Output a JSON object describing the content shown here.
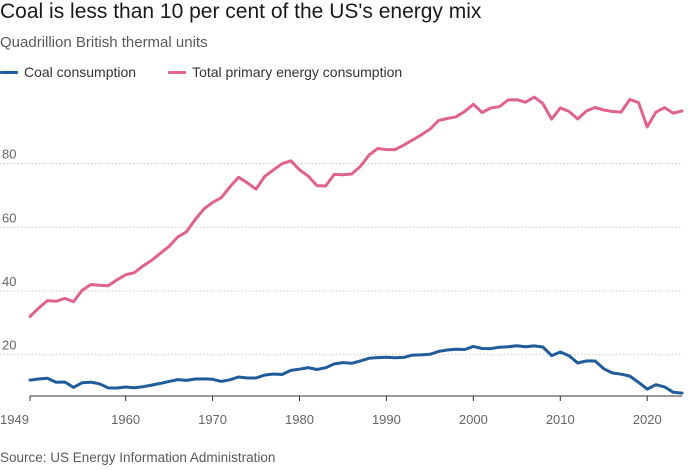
{
  "header": {
    "title": "Coal is less than 10 per cent of the US's energy mix",
    "subtitle": "Quadrillion British thermal units"
  },
  "footer": {
    "source": "Source: US Energy Information Administration"
  },
  "colors": {
    "coal": "#1f5c99",
    "total": "#e0628f",
    "grid": "#c9c9c9",
    "axis": "#333333",
    "tick_text": "#666666"
  },
  "chart_data": {
    "type": "line",
    "title": "Coal is less than 10 per cent of the US's energy mix",
    "subtitle": "Quadrillion British thermal units",
    "xlabel": "",
    "ylabel": "",
    "xlim": [
      1949,
      2024
    ],
    "ylim": [
      7,
      100
    ],
    "grid": true,
    "legend_position": "top-left",
    "x_ticks": [
      1949,
      1960,
      1970,
      1980,
      1990,
      2000,
      2010,
      2020
    ],
    "y_ticks": [
      20,
      40,
      60,
      80
    ],
    "x": [
      1949,
      1950,
      1951,
      1952,
      1953,
      1954,
      1955,
      1956,
      1957,
      1958,
      1959,
      1960,
      1961,
      1962,
      1963,
      1964,
      1965,
      1966,
      1967,
      1968,
      1969,
      1970,
      1971,
      1972,
      1973,
      1974,
      1975,
      1976,
      1977,
      1978,
      1979,
      1980,
      1981,
      1982,
      1983,
      1984,
      1985,
      1986,
      1987,
      1988,
      1989,
      1990,
      1991,
      1992,
      1993,
      1994,
      1995,
      1996,
      1997,
      1998,
      1999,
      2000,
      2001,
      2002,
      2003,
      2004,
      2005,
      2006,
      2007,
      2008,
      2009,
      2010,
      2011,
      2012,
      2013,
      2014,
      2015,
      2016,
      2017,
      2018,
      2019,
      2020,
      2021,
      2022,
      2023,
      2024
    ],
    "series": [
      {
        "name": "Coal consumption",
        "color": "#1f5c99",
        "values": [
          11.98,
          12.35,
          12.55,
          11.31,
          11.41,
          9.71,
          11.17,
          11.35,
          10.82,
          9.53,
          9.52,
          9.84,
          9.62,
          9.91,
          10.41,
          10.96,
          11.58,
          12.14,
          11.91,
          12.33,
          12.38,
          12.26,
          11.6,
          12.08,
          12.97,
          12.66,
          12.66,
          13.58,
          13.92,
          13.77,
          15.04,
          15.42,
          15.91,
          15.32,
          15.89,
          17.07,
          17.48,
          17.26,
          18.01,
          18.85,
          19.07,
          19.17,
          18.99,
          19.12,
          19.84,
          19.91,
          20.09,
          21.0,
          21.45,
          21.66,
          21.62,
          22.58,
          21.91,
          21.9,
          22.32,
          22.47,
          22.8,
          22.45,
          22.75,
          22.39,
          19.69,
          20.83,
          19.66,
          17.38,
          18.04,
          17.99,
          15.55,
          14.23,
          13.84,
          13.24,
          11.31,
          9.18,
          10.55,
          9.85,
          8.17,
          7.9
        ]
      },
      {
        "name": "Total primary energy consumption",
        "color": "#e0628f",
        "values": [
          31.98,
          34.62,
          36.97,
          36.75,
          37.66,
          36.64,
          40.21,
          42.02,
          41.79,
          41.65,
          43.47,
          45.09,
          45.74,
          47.83,
          49.64,
          51.82,
          54.02,
          57.0,
          58.6,
          62.47,
          65.74,
          67.84,
          69.29,
          72.7,
          75.71,
          73.99,
          71.97,
          76.01,
          78.0,
          79.99,
          80.9,
          78.07,
          76.1,
          73.1,
          72.97,
          76.61,
          76.49,
          76.76,
          79.1,
          82.7,
          84.77,
          84.43,
          84.43,
          85.84,
          87.43,
          89.03,
          90.8,
          93.56,
          94.2,
          94.73,
          96.38,
          98.67,
          96.05,
          97.5,
          97.91,
          100.02,
          100.08,
          99.3,
          100.91,
          98.87,
          94.0,
          97.51,
          96.42,
          94.02,
          96.53,
          97.63,
          96.86,
          96.4,
          96.19,
          100.15,
          99.22,
          91.56,
          96.2,
          97.61,
          95.86,
          96.56
        ]
      }
    ]
  }
}
